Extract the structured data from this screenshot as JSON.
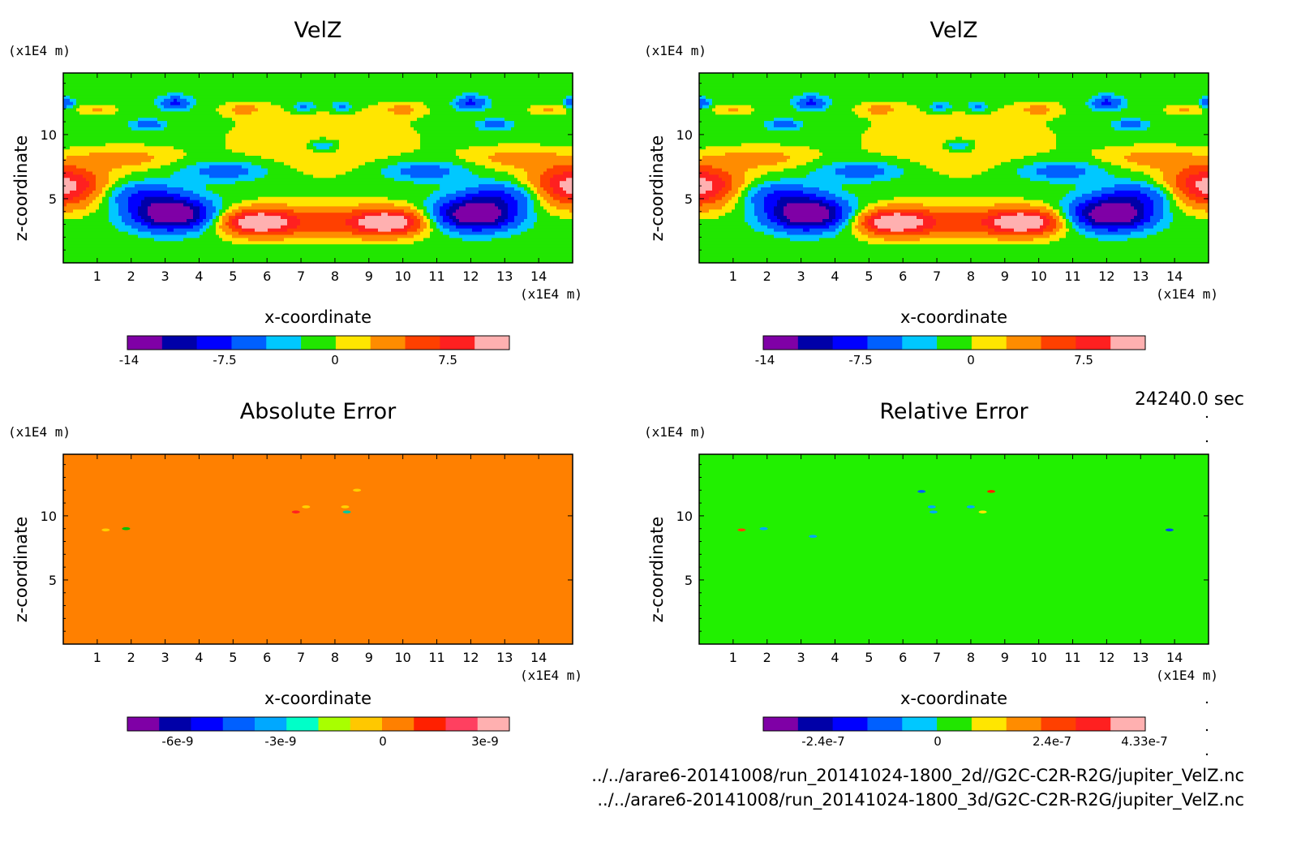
{
  "chart_data": [
    {
      "type": "heatmap",
      "title": "VelZ",
      "xlabel": "x-coordinate",
      "ylabel": "z-coordinate",
      "x_unit": "(x1E4 m)",
      "y_unit": "(x1E4 m)",
      "xlim": [
        0,
        15
      ],
      "ylim": [
        0,
        15
      ],
      "x_ticks": [
        "1",
        "2",
        "3",
        "4",
        "5",
        "6",
        "7",
        "8",
        "9",
        "10",
        "11",
        "12",
        "13",
        "14"
      ],
      "y_ticks": [
        "5",
        "10"
      ],
      "colorbar": {
        "colors": [
          "#7f00a6",
          "#0000a8",
          "#0000ff",
          "#0060ff",
          "#00c8ff",
          "#21e600",
          "#ffe600",
          "#ff8c00",
          "#ff4000",
          "#ff2020",
          "#ffb0b0"
        ],
        "labels": [
          "-14",
          "-7.5",
          "0",
          "7.5"
        ]
      },
      "field": "velz"
    },
    {
      "type": "heatmap",
      "title": "VelZ",
      "xlabel": "x-coordinate",
      "ylabel": "z-coordinate",
      "x_unit": "(x1E4 m)",
      "y_unit": "(x1E4 m)",
      "xlim": [
        0,
        15
      ],
      "ylim": [
        0,
        15
      ],
      "x_ticks": [
        "1",
        "2",
        "3",
        "4",
        "5",
        "6",
        "7",
        "8",
        "9",
        "10",
        "11",
        "12",
        "13",
        "14"
      ],
      "y_ticks": [
        "5",
        "10"
      ],
      "colorbar": {
        "colors": [
          "#7f00a6",
          "#0000a8",
          "#0000ff",
          "#0060ff",
          "#00c8ff",
          "#21e600",
          "#ffe600",
          "#ff8c00",
          "#ff4000",
          "#ff2020",
          "#ffb0b0"
        ],
        "labels": [
          "-14",
          "-7.5",
          "0",
          "7.5"
        ]
      },
      "field": "velz"
    },
    {
      "type": "heatmap",
      "title": "Absolute Error",
      "xlabel": "x-coordinate",
      "ylabel": "z-coordinate",
      "x_unit": "(x1E4 m)",
      "y_unit": "(x1E4 m)",
      "xlim": [
        0,
        15
      ],
      "ylim": [
        0,
        15
      ],
      "x_ticks": [
        "1",
        "2",
        "3",
        "4",
        "5",
        "6",
        "7",
        "8",
        "9",
        "10",
        "11",
        "12",
        "13",
        "14"
      ],
      "y_ticks": [
        "5",
        "10"
      ],
      "colorbar": {
        "colors": [
          "#7f00a6",
          "#0000a8",
          "#0000ff",
          "#0060ff",
          "#00a8ff",
          "#00ffc8",
          "#a8ff00",
          "#ffc800",
          "#ff8000",
          "#ff2000",
          "#ff4060",
          "#ffb0b0"
        ],
        "labels": [
          "-6e-9",
          "-3e-9",
          "0",
          "3e-9"
        ]
      },
      "background": "#ff8000",
      "spots": [
        {
          "x": 1.25,
          "z": 8.9,
          "color": "#ffd000"
        },
        {
          "x": 1.85,
          "z": 9.0,
          "color": "#00c000"
        },
        {
          "x": 6.85,
          "z": 10.3,
          "color": "#ff2020"
        },
        {
          "x": 7.15,
          "z": 10.7,
          "color": "#ffd000"
        },
        {
          "x": 8.3,
          "z": 10.7,
          "color": "#ffd000"
        },
        {
          "x": 8.35,
          "z": 10.3,
          "color": "#00c8a0"
        },
        {
          "x": 8.65,
          "z": 12.0,
          "color": "#ffd000"
        }
      ]
    },
    {
      "type": "heatmap",
      "title": "Relative Error",
      "xlabel": "x-coordinate",
      "ylabel": "z-coordinate",
      "x_unit": "(x1E4 m)",
      "y_unit": "(x1E4 m)",
      "xlim": [
        0,
        15
      ],
      "ylim": [
        0,
        15
      ],
      "x_ticks": [
        "1",
        "2",
        "3",
        "4",
        "5",
        "6",
        "7",
        "8",
        "9",
        "10",
        "11",
        "12",
        "13",
        "14"
      ],
      "y_ticks": [
        "5",
        "10"
      ],
      "colorbar": {
        "colors": [
          "#7f00a6",
          "#0000a8",
          "#0000ff",
          "#0060ff",
          "#00c8ff",
          "#21e600",
          "#ffe600",
          "#ff8c00",
          "#ff4000",
          "#ff2020",
          "#ffb0b0"
        ],
        "labels": [
          "-2.4e-7",
          "0",
          "2.4e-7",
          "4.33e-7"
        ]
      },
      "background": "#21f000",
      "spots": [
        {
          "x": 1.25,
          "z": 8.9,
          "color": "#ff4000"
        },
        {
          "x": 1.9,
          "z": 9.0,
          "color": "#00a8ff"
        },
        {
          "x": 3.35,
          "z": 8.4,
          "color": "#00a8ff"
        },
        {
          "x": 6.55,
          "z": 11.9,
          "color": "#0060ff"
        },
        {
          "x": 6.85,
          "z": 10.7,
          "color": "#00a8ff"
        },
        {
          "x": 6.9,
          "z": 10.3,
          "color": "#00a8ff"
        },
        {
          "x": 8.0,
          "z": 10.7,
          "color": "#00a8ff"
        },
        {
          "x": 8.35,
          "z": 10.3,
          "color": "#ffe600"
        },
        {
          "x": 8.6,
          "z": 11.9,
          "color": "#ff2000"
        },
        {
          "x": 13.85,
          "z": 8.9,
          "color": "#0040ff"
        }
      ]
    }
  ],
  "footer": {
    "time": "24240.0 sec",
    "path1": "../../arare6-20141008/run_20141024-1800_2d//G2C-C2R-R2G/jupiter_VelZ.nc",
    "path2": "../../arare6-20141008/run_20141024-1800_3d/G2C-C2R-R2G/jupiter_VelZ.nc"
  }
}
